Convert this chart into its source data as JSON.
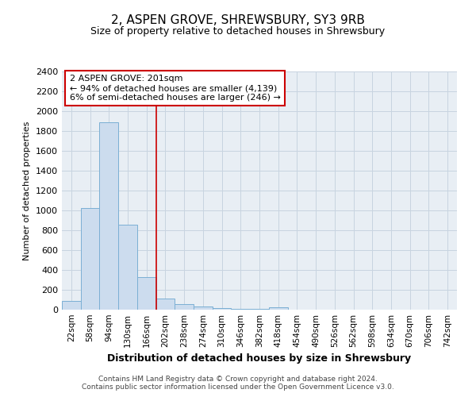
{
  "title": "2, ASPEN GROVE, SHREWSBURY, SY3 9RB",
  "subtitle": "Size of property relative to detached houses in Shrewsbury",
  "xlabel": "Distribution of detached houses by size in Shrewsbury",
  "ylabel": "Number of detached properties",
  "bar_color": "#ccdcee",
  "bar_edge_color": "#7bafd4",
  "bins": [
    "22sqm",
    "58sqm",
    "94sqm",
    "130sqm",
    "166sqm",
    "202sqm",
    "238sqm",
    "274sqm",
    "310sqm",
    "346sqm",
    "382sqm",
    "418sqm",
    "454sqm",
    "490sqm",
    "526sqm",
    "562sqm",
    "598sqm",
    "634sqm",
    "670sqm",
    "706sqm",
    "742sqm"
  ],
  "values": [
    90,
    1025,
    1890,
    860,
    325,
    115,
    55,
    35,
    20,
    8,
    8,
    25,
    3,
    2,
    2,
    2,
    2,
    1,
    1,
    1,
    0
  ],
  "property_line_x": 5.0,
  "annotation_line1": "2 ASPEN GROVE: 201sqm",
  "annotation_line2": "← 94% of detached houses are smaller (4,139)",
  "annotation_line3": "6% of semi-detached houses are larger (246) →",
  "annotation_box_color": "#cc0000",
  "ylim": [
    0,
    2400
  ],
  "yticks": [
    0,
    200,
    400,
    600,
    800,
    1000,
    1200,
    1400,
    1600,
    1800,
    2000,
    2200,
    2400
  ],
  "grid_color": "#c8d4e0",
  "bg_color": "#e8eef4",
  "footer_line1": "Contains HM Land Registry data © Crown copyright and database right 2024.",
  "footer_line2": "Contains public sector information licensed under the Open Government Licence v3.0."
}
